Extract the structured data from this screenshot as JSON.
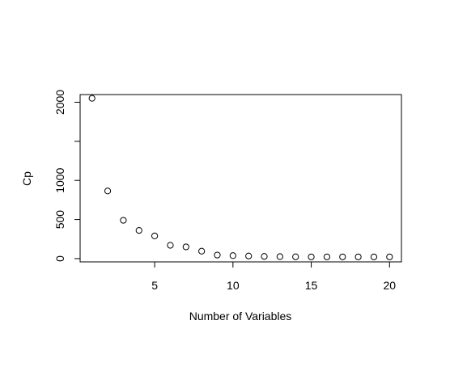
{
  "chart_data": {
    "type": "scatter",
    "title": "",
    "xlabel": "Number of Variables",
    "ylabel": "Cp",
    "xlim": [
      0.24,
      20.76
    ],
    "ylim": [
      -42,
      2098
    ],
    "x_ticks": [
      5,
      10,
      15,
      20
    ],
    "y_ticks": [
      0,
      500,
      1000,
      1500,
      2000
    ],
    "y_tick_labels": [
      "0",
      "500",
      "1000",
      "",
      "2000"
    ],
    "grid": false,
    "legend": "none",
    "marker": "open-circle",
    "x": [
      1,
      2,
      3,
      4,
      5,
      6,
      7,
      8,
      9,
      10,
      11,
      12,
      13,
      14,
      15,
      16,
      17,
      18,
      19,
      20
    ],
    "y": [
      2050,
      865,
      490,
      360,
      290,
      170,
      150,
      95,
      45,
      38,
      33,
      28,
      25,
      23,
      22,
      22,
      22,
      22,
      22,
      22
    ]
  }
}
